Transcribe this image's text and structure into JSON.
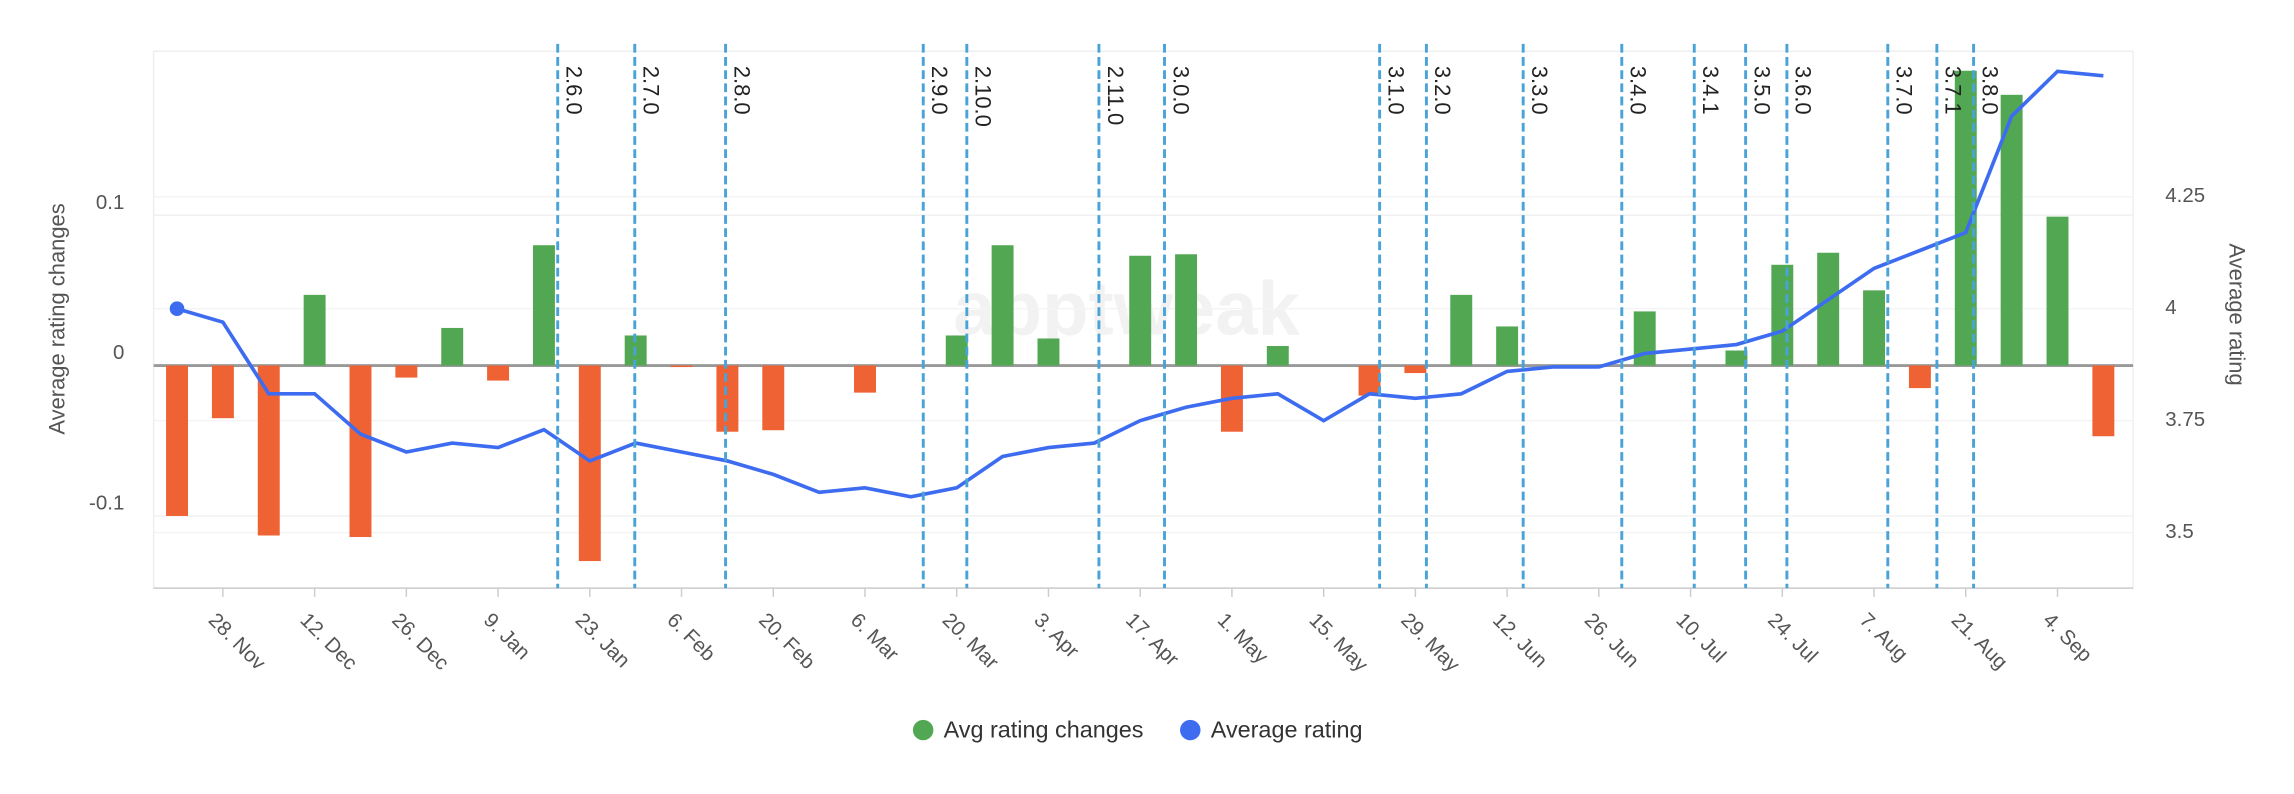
{
  "chart_data": {
    "type": "bar_line",
    "watermark": "apptweak",
    "y_label": "Average rating changes",
    "y2_label": "Average rating",
    "categories": [
      null,
      "28. Nov",
      null,
      "12. Dec",
      null,
      "26. Dec",
      null,
      "9. Jan",
      null,
      "23. Jan",
      null,
      "6. Feb",
      null,
      "20. Feb",
      null,
      "6. Mar",
      null,
      "20. Mar",
      null,
      "3. Apr",
      null,
      "17. Apr",
      null,
      "1. May",
      null,
      "15. May",
      null,
      "29. May",
      null,
      "12. Jun",
      null,
      "26. Jun",
      null,
      "10. Jul",
      null,
      "24. Jul",
      null,
      "7. Aug",
      null,
      "21. Aug",
      null,
      "4. Sep",
      null
    ],
    "series": [
      {
        "name": "Avg rating changes",
        "type": "bar",
        "color": "#52a852",
        "negative_color": "#ee6234",
        "values": [
          -0.1,
          -0.035,
          -0.113,
          0.047,
          -0.114,
          -0.008,
          0.025,
          -0.01,
          0.08,
          -0.13,
          0.02,
          -0.001,
          -0.044,
          -0.043,
          0,
          -0.018,
          0,
          0.02,
          0.08,
          0.018,
          0,
          0.073,
          0.074,
          -0.044,
          0.013,
          0,
          -0.02,
          -0.005,
          0.047,
          0.026,
          0,
          0,
          0.036,
          0,
          0.01,
          0.067,
          0.075,
          0.05,
          -0.015,
          0.196,
          0.18,
          0.099,
          -0.047
        ]
      },
      {
        "name": "Average rating",
        "type": "line",
        "axis": "y2",
        "color": "#3e6cf0",
        "values": [
          4.0,
          3.97,
          3.81,
          3.81,
          3.72,
          3.68,
          3.7,
          3.69,
          3.73,
          3.66,
          3.7,
          3.68,
          3.66,
          3.63,
          3.59,
          3.6,
          3.58,
          3.6,
          3.67,
          3.69,
          3.7,
          3.75,
          3.78,
          3.8,
          3.81,
          3.75,
          3.81,
          3.8,
          3.81,
          3.86,
          3.87,
          3.87,
          3.9,
          3.91,
          3.92,
          3.95,
          4.02,
          4.09,
          4.13,
          4.17,
          4.43,
          4.53,
          4.52
        ]
      }
    ],
    "ylim": [
      -0.148,
      0.209
    ],
    "yticks": [
      -0.1,
      0,
      0.1
    ],
    "y2lim": [
      3.376,
      4.575
    ],
    "y2ticks": [
      3.5,
      3.75,
      4,
      4.25
    ],
    "grid": true,
    "legend": "bottom",
    "annotations": [
      {
        "label": "2.6.0",
        "x": 8.3
      },
      {
        "label": "2.7.0",
        "x": 9.98
      },
      {
        "label": "2.8.0",
        "x": 11.96
      },
      {
        "label": "2.9.0",
        "x": 16.27
      },
      {
        "label": "2.10.0",
        "x": 17.22
      },
      {
        "label": "2.11.0",
        "x": 20.1
      },
      {
        "label": "3.0.0",
        "x": 21.53
      },
      {
        "label": "3.1.0",
        "x": 26.22
      },
      {
        "label": "3.2.0",
        "x": 27.24
      },
      {
        "label": "3.3.0",
        "x": 29.35
      },
      {
        "label": "3.4.0",
        "x": 31.5
      },
      {
        "label": "3.4.1",
        "x": 33.08
      },
      {
        "label": "3.5.0",
        "x": 34.2
      },
      {
        "label": "3.6.0",
        "x": 35.1
      },
      {
        "label": "3.7.0",
        "x": 37.3
      },
      {
        "label": "3.7.1",
        "x": 38.37
      },
      {
        "label": "3.8.0",
        "x": 39.17
      }
    ]
  }
}
